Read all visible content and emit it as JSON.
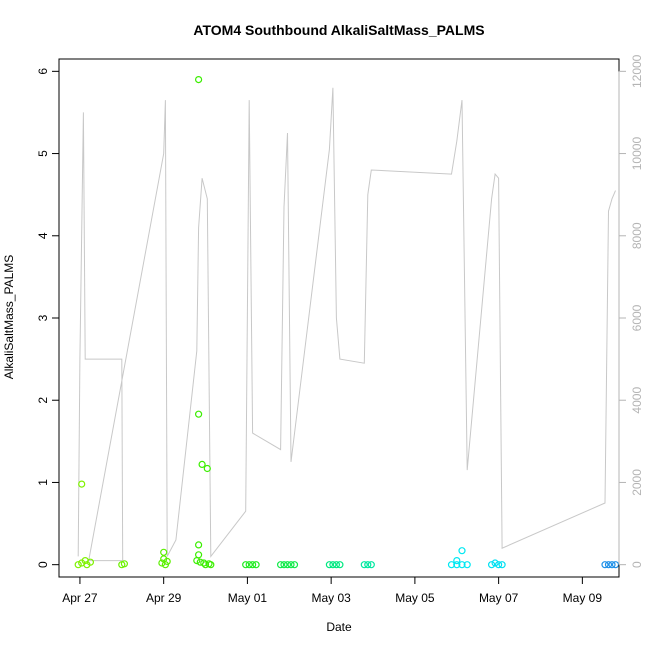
{
  "chart_data": {
    "type": "scatter",
    "title": "ATOM4 Southbound AlkaliSaltMass_PALMS",
    "xlabel": "Date",
    "ylabel": "AlkaliSaltMass_PALMS",
    "x_start": "2017-04-26T12:00",
    "x_end": "2017-05-09T21:00",
    "xticks": [
      {
        "date": "2017-04-27",
        "label": "Apr 27"
      },
      {
        "date": "2017-04-29",
        "label": "Apr 29"
      },
      {
        "date": "2017-05-01",
        "label": "May 01"
      },
      {
        "date": "2017-05-03",
        "label": "May 03"
      },
      {
        "date": "2017-05-05",
        "label": "May 05"
      },
      {
        "date": "2017-05-07",
        "label": "May 07"
      },
      {
        "date": "2017-05-09",
        "label": "May 09"
      }
    ],
    "ylim": [
      -0.15,
      6.15
    ],
    "yticks": [
      0,
      1,
      2,
      3,
      4,
      5,
      6
    ],
    "y2lim": [
      -300,
      12300
    ],
    "y2ticks": [
      0,
      2000,
      4000,
      6000,
      8000,
      10000,
      12000
    ],
    "y2_color": "#b4b4b4",
    "marker": "open-circle",
    "series": [
      {
        "role": "AlkaliSaltMass_PALMS",
        "axis": "left",
        "points": [
          {
            "date": "2017-04-27T01:00",
            "y": 0.98,
            "color": "#7ef200"
          },
          {
            "date": "2017-04-26T23:00",
            "y": 0.0,
            "color": "#7ef200"
          },
          {
            "date": "2017-04-27T01:00",
            "y": 0.02,
            "color": "#7ef200"
          },
          {
            "date": "2017-04-27T03:00",
            "y": 0.05,
            "color": "#7ef200"
          },
          {
            "date": "2017-04-27T04:00",
            "y": 0.0,
            "color": "#7ef200"
          },
          {
            "date": "2017-04-27T06:00",
            "y": 0.03,
            "color": "#7ef200"
          },
          {
            "date": "2017-04-28T00:00",
            "y": 0.0,
            "color": "#6cf200"
          },
          {
            "date": "2017-04-28T01:30",
            "y": 0.01,
            "color": "#6cf200"
          },
          {
            "date": "2017-04-29T00:00",
            "y": 0.15,
            "color": "#5bf000"
          },
          {
            "date": "2017-04-29T00:00",
            "y": 0.07,
            "color": "#5bf000"
          },
          {
            "date": "2017-04-28T23:00",
            "y": 0.02,
            "color": "#5bf000"
          },
          {
            "date": "2017-04-29T01:00",
            "y": 0.0,
            "color": "#5bf000"
          },
          {
            "date": "2017-04-29T02:00",
            "y": 0.04,
            "color": "#5bf000"
          },
          {
            "date": "2017-04-29T20:00",
            "y": 5.9,
            "color": "#3bee00"
          },
          {
            "date": "2017-04-29T20:00",
            "y": 1.83,
            "color": "#3bee00"
          },
          {
            "date": "2017-04-29T22:00",
            "y": 1.22,
            "color": "#3bee00"
          },
          {
            "date": "2017-04-30T01:00",
            "y": 1.17,
            "color": "#3bee00"
          },
          {
            "date": "2017-04-29T20:00",
            "y": 0.24,
            "color": "#3bee00"
          },
          {
            "date": "2017-04-29T20:00",
            "y": 0.12,
            "color": "#3bee00"
          },
          {
            "date": "2017-04-29T19:00",
            "y": 0.05,
            "color": "#3bee00"
          },
          {
            "date": "2017-04-29T21:00",
            "y": 0.03,
            "color": "#3bee00"
          },
          {
            "date": "2017-04-29T23:00",
            "y": 0.02,
            "color": "#3bee00"
          },
          {
            "date": "2017-04-30T00:00",
            "y": 0.0,
            "color": "#3bee00"
          },
          {
            "date": "2017-04-30T02:00",
            "y": 0.01,
            "color": "#3bee00"
          },
          {
            "date": "2017-04-30T03:00",
            "y": 0.0,
            "color": "#3bee00"
          },
          {
            "date": "2017-04-30T23:00",
            "y": 0.0,
            "color": "#20ec20"
          },
          {
            "date": "2017-05-01T01:00",
            "y": 0.0,
            "color": "#20ec20"
          },
          {
            "date": "2017-05-01T03:00",
            "y": 0.0,
            "color": "#20ec20"
          },
          {
            "date": "2017-05-01T05:00",
            "y": 0.0,
            "color": "#20ec20"
          },
          {
            "date": "2017-05-01T19:00",
            "y": 0.0,
            "color": "#10ea48"
          },
          {
            "date": "2017-05-01T21:00",
            "y": 0.0,
            "color": "#10ea48"
          },
          {
            "date": "2017-05-01T23:00",
            "y": 0.0,
            "color": "#10ea48"
          },
          {
            "date": "2017-05-02T01:00",
            "y": 0.0,
            "color": "#10ea48"
          },
          {
            "date": "2017-05-02T03:00",
            "y": 0.0,
            "color": "#10ea48"
          },
          {
            "date": "2017-05-02T23:00",
            "y": 0.0,
            "color": "#00e880"
          },
          {
            "date": "2017-05-03T01:00",
            "y": 0.0,
            "color": "#00e880"
          },
          {
            "date": "2017-05-03T03:00",
            "y": 0.0,
            "color": "#00e880"
          },
          {
            "date": "2017-05-03T05:00",
            "y": 0.0,
            "color": "#00e880"
          },
          {
            "date": "2017-05-03T19:00",
            "y": 0.0,
            "color": "#00e8a0"
          },
          {
            "date": "2017-05-03T21:00",
            "y": 0.0,
            "color": "#00e8a0"
          },
          {
            "date": "2017-05-03T23:00",
            "y": 0.0,
            "color": "#00e8a0"
          },
          {
            "date": "2017-05-06T03:00",
            "y": 0.17,
            "color": "#00e8f2"
          },
          {
            "date": "2017-05-06T00:00",
            "y": 0.05,
            "color": "#00e8f2"
          },
          {
            "date": "2017-05-05T21:00",
            "y": 0.0,
            "color": "#00e8f2"
          },
          {
            "date": "2017-05-06T00:00",
            "y": 0.0,
            "color": "#00e8f2"
          },
          {
            "date": "2017-05-06T03:00",
            "y": 0.0,
            "color": "#00e8f2"
          },
          {
            "date": "2017-05-06T06:00",
            "y": 0.0,
            "color": "#00e8f2"
          },
          {
            "date": "2017-05-06T20:00",
            "y": 0.0,
            "color": "#00e0f2"
          },
          {
            "date": "2017-05-06T22:00",
            "y": 0.02,
            "color": "#00e0f2"
          },
          {
            "date": "2017-05-07T00:00",
            "y": 0.0,
            "color": "#00e0f2"
          },
          {
            "date": "2017-05-07T02:00",
            "y": 0.0,
            "color": "#00e0f2"
          },
          {
            "date": "2017-05-09T13:00",
            "y": 0.0,
            "color": "#1e90e8"
          },
          {
            "date": "2017-05-09T15:00",
            "y": 0.0,
            "color": "#1e90e8"
          },
          {
            "date": "2017-05-09T17:00",
            "y": 0.0,
            "color": "#1e90e8"
          },
          {
            "date": "2017-05-09T19:00",
            "y": 0.0,
            "color": "#1e90e8"
          }
        ]
      },
      {
        "role": "secondary-axis trace",
        "axis": "right",
        "color": "#c8c8c8",
        "points": [
          {
            "date": "2017-04-26T23:00",
            "y2": 200
          },
          {
            "date": "2017-04-27T00:00",
            "y2": 5000
          },
          {
            "date": "2017-04-27T02:00",
            "y2": 11000
          },
          {
            "date": "2017-04-27T03:00",
            "y2": 5000
          },
          {
            "date": "2017-04-28T00:00",
            "y2": 5000
          },
          {
            "date": "2017-04-28T00:30",
            "y2": 100
          },
          {
            "date": "2017-04-27T05:00",
            "y2": 100
          },
          {
            "date": "2017-04-29T00:00",
            "y2": 10000
          },
          {
            "date": "2017-04-29T01:00",
            "y2": 11300
          },
          {
            "date": "2017-04-29T02:00",
            "y2": 200
          },
          {
            "date": "2017-04-29T07:00",
            "y2": 600
          },
          {
            "date": "2017-04-29T19:00",
            "y2": 5200
          },
          {
            "date": "2017-04-29T20:00",
            "y2": 8200
          },
          {
            "date": "2017-04-29T22:00",
            "y2": 9400
          },
          {
            "date": "2017-04-30T01:00",
            "y2": 8900
          },
          {
            "date": "2017-04-30T03:00",
            "y2": 200
          },
          {
            "date": "2017-04-30T23:00",
            "y2": 1300
          },
          {
            "date": "2017-05-01T01:00",
            "y2": 11300
          },
          {
            "date": "2017-05-01T03:00",
            "y2": 3200
          },
          {
            "date": "2017-05-01T19:00",
            "y2": 2800
          },
          {
            "date": "2017-05-01T21:00",
            "y2": 8700
          },
          {
            "date": "2017-05-01T23:00",
            "y2": 10500
          },
          {
            "date": "2017-05-02T01:00",
            "y2": 2500
          },
          {
            "date": "2017-05-02T23:00",
            "y2": 10100
          },
          {
            "date": "2017-05-03T01:00",
            "y2": 11600
          },
          {
            "date": "2017-05-03T03:00",
            "y2": 6000
          },
          {
            "date": "2017-05-03T05:00",
            "y2": 5000
          },
          {
            "date": "2017-05-03T19:00",
            "y2": 4900
          },
          {
            "date": "2017-05-03T21:00",
            "y2": 9000
          },
          {
            "date": "2017-05-03T23:00",
            "y2": 9600
          },
          {
            "date": "2017-05-05T21:00",
            "y2": 9500
          },
          {
            "date": "2017-05-06T00:00",
            "y2": 10300
          },
          {
            "date": "2017-05-06T03:00",
            "y2": 11300
          },
          {
            "date": "2017-05-06T06:00",
            "y2": 2300
          },
          {
            "date": "2017-05-06T20:00",
            "y2": 8900
          },
          {
            "date": "2017-05-06T22:00",
            "y2": 9500
          },
          {
            "date": "2017-05-07T00:00",
            "y2": 9400
          },
          {
            "date": "2017-05-07T02:00",
            "y2": 400
          },
          {
            "date": "2017-05-09T13:00",
            "y2": 1500
          },
          {
            "date": "2017-05-09T15:00",
            "y2": 8600
          },
          {
            "date": "2017-05-09T17:00",
            "y2": 8900
          },
          {
            "date": "2017-05-09T19:00",
            "y2": 9100
          }
        ]
      }
    ]
  }
}
